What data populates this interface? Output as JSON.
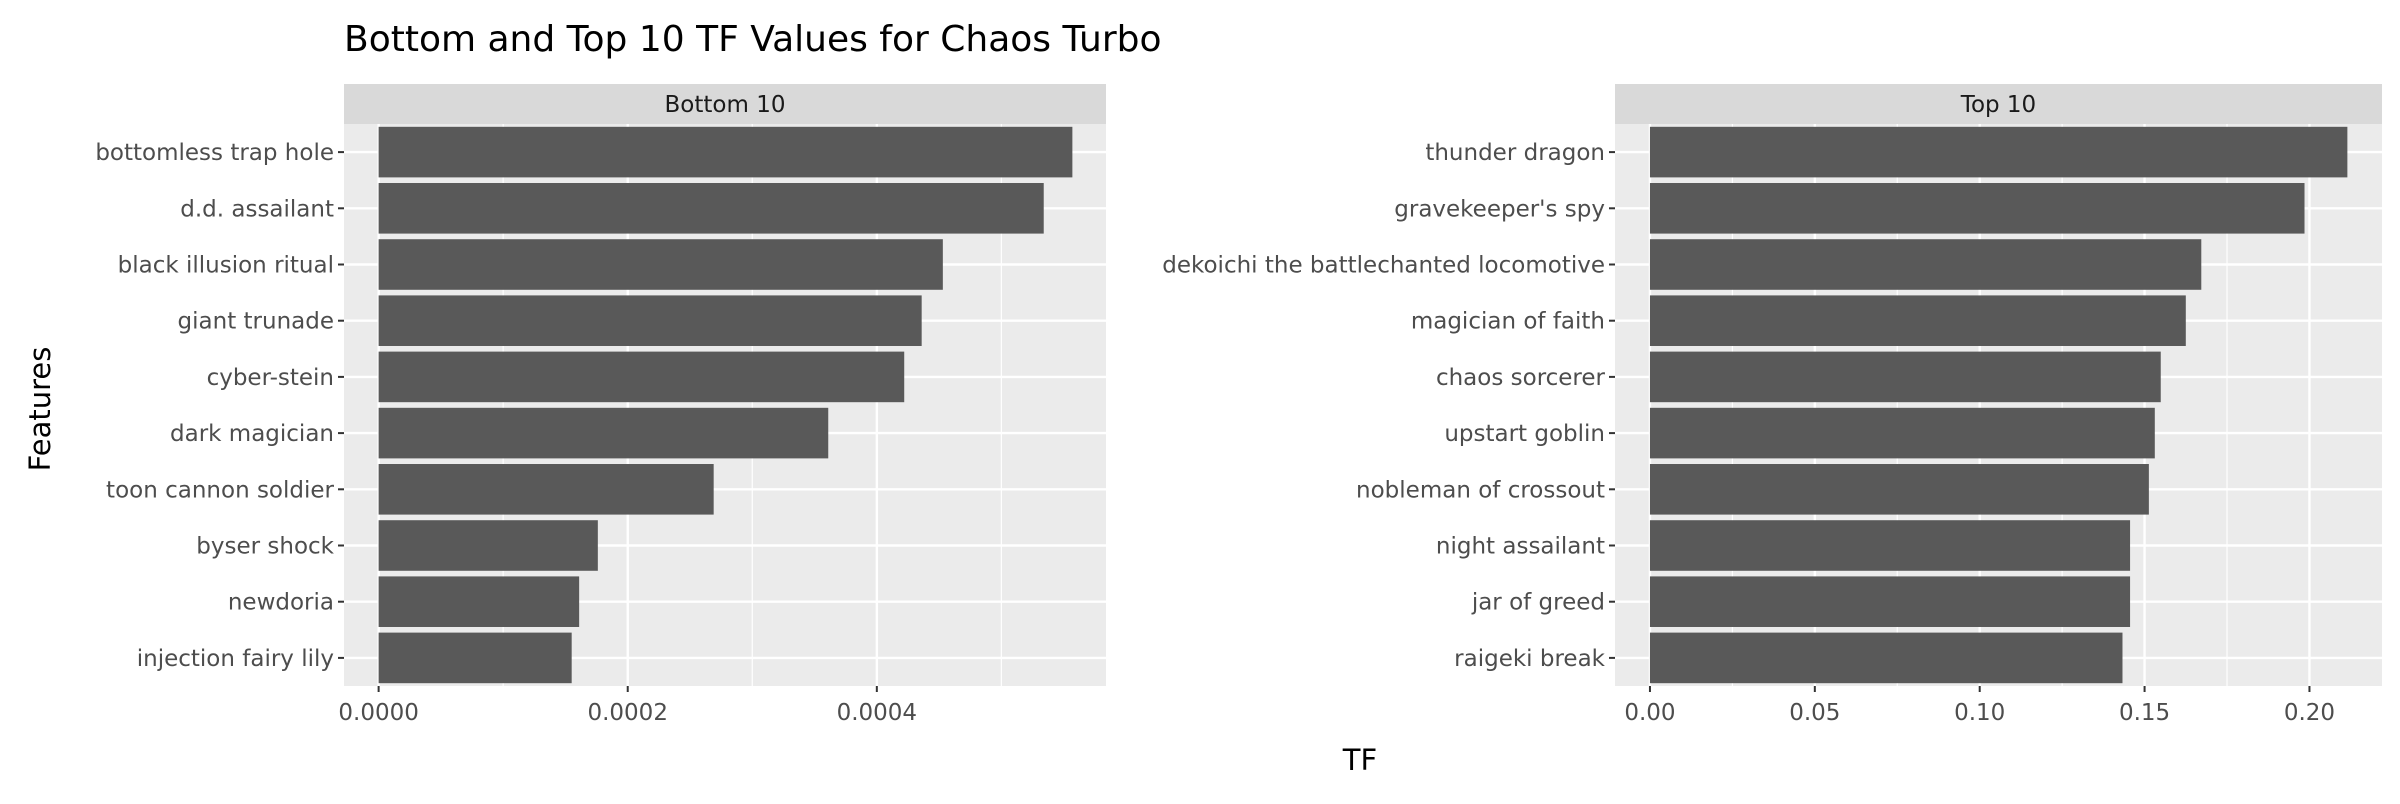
{
  "chart_data": {
    "title": "Bottom and Top 10 TF Values for Chaos Turbo",
    "xlabel": "TF",
    "ylabel": "Features",
    "panels": [
      {
        "type": "bar",
        "orientation": "horizontal",
        "strip_label": "Bottom 10",
        "categories": [
          "bottomless trap hole",
          "d.d. assailant",
          "black illusion ritual",
          "giant trunade",
          "cyber-stein",
          "dark magician",
          "toon cannon soldier",
          "byser shock",
          "newdoria",
          "injection fairy lily"
        ],
        "values": [
          0.000557,
          0.000534,
          0.000453,
          0.000436,
          0.000422,
          0.000361,
          0.000269,
          0.000176,
          0.000161,
          0.000155
        ],
        "xlim": [
          -2.78e-05,
          0.000584
        ],
        "x_ticks": [
          0,
          0.0002,
          0.0004
        ],
        "x_tick_labels": [
          "0.0000",
          "0.0002",
          "0.0004"
        ],
        "grid": true
      },
      {
        "type": "bar",
        "orientation": "horizontal",
        "strip_label": "Top 10",
        "categories": [
          "thunder dragon",
          "gravekeeper's spy",
          "dekoichi the battlechanted locomotive",
          "magician of faith",
          "chaos sorcerer",
          "upstart goblin",
          "nobleman of crossout",
          "night assailant",
          "jar of greed",
          "raigeki break"
        ],
        "values": [
          0.2115,
          0.1985,
          0.1672,
          0.1625,
          0.1549,
          0.1531,
          0.1513,
          0.1456,
          0.1456,
          0.1433
        ],
        "xlim": [
          -0.0106,
          0.222
        ],
        "x_ticks": [
          0,
          0.05,
          0.1,
          0.15,
          0.2
        ],
        "x_tick_labels": [
          "0.00",
          "0.05",
          "0.10",
          "0.15",
          "0.20"
        ],
        "grid": true
      }
    ],
    "colors": {
      "bar": "#595959",
      "panel_bg": "#ebebeb",
      "strip_bg": "#d9d9d9",
      "grid": "#ffffff",
      "axis_text": "#4d4d4d",
      "title_text": "#000000",
      "tick_mark": "#333333"
    }
  }
}
